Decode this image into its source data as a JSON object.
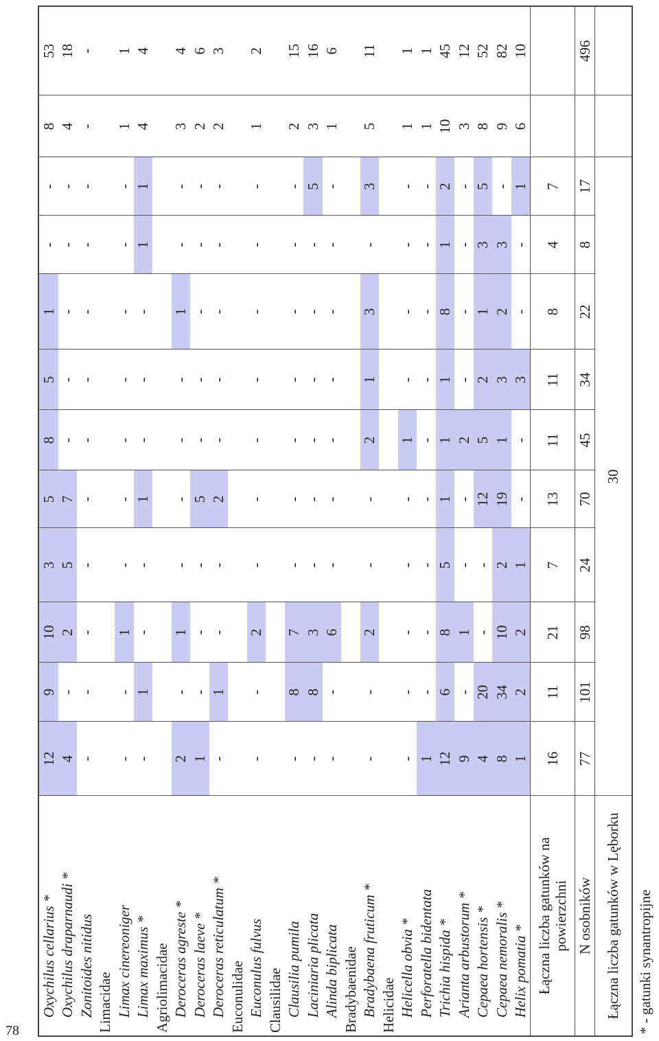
{
  "table": {
    "rows": [
      {
        "name": "Oxychilus cellarius *",
        "values": [
          12,
          9,
          10,
          3,
          5,
          8,
          5,
          1,
          "-",
          "-",
          8,
          53
        ]
      },
      {
        "name": "Oxychilus draparnaudi *",
        "values": [
          4,
          "-",
          2,
          5,
          7,
          "-",
          "-",
          "-",
          "-",
          "-",
          4,
          18
        ]
      },
      {
        "name": "Zonitoides nitidus",
        "values": [
          "-",
          "-",
          "-",
          "-",
          "-",
          "-",
          "-",
          "-",
          "-",
          "-",
          "-",
          "-"
        ]
      },
      {
        "name": "Limacidae"
      },
      {
        "name": "Limax cinereoniger",
        "values": [
          "-",
          "-",
          1,
          "-",
          "-",
          "-",
          "-",
          "-",
          "-",
          "-",
          1,
          1
        ]
      },
      {
        "name": "Limax maximus *",
        "values": [
          "-",
          1,
          "-",
          "-",
          1,
          "-",
          "-",
          "-",
          1,
          1,
          4,
          4
        ]
      },
      {
        "name": "Agriolimacidae"
      },
      {
        "name": "Deroceras agreste *",
        "values": [
          2,
          "-",
          1,
          "-",
          "-",
          "-",
          "-",
          1,
          "-",
          "-",
          3,
          4
        ]
      },
      {
        "name": "Deroceras laeve *",
        "values": [
          1,
          "-",
          "-",
          "-",
          5,
          "-",
          "-",
          "-",
          "-",
          "-",
          2,
          6
        ]
      },
      {
        "name": "Deroceras reticulatum *",
        "values": [
          "-",
          1,
          "-",
          "-",
          2,
          "-",
          "-",
          "-",
          "-",
          "-",
          2,
          3
        ]
      },
      {
        "name": "Euconulidae"
      },
      {
        "name": "Euconulus fulvus",
        "values": [
          "-",
          "-",
          2,
          "-",
          "-",
          "-",
          "-",
          "-",
          "-",
          "-",
          1,
          2
        ]
      },
      {
        "name": "Clausilidae"
      },
      {
        "name": "Clausilia pumila",
        "values": [
          "-",
          8,
          7,
          "-",
          "-",
          "-",
          "-",
          "-",
          "-",
          "-",
          2,
          15
        ]
      },
      {
        "name": "Laciniaria plicata",
        "values": [
          "-",
          8,
          3,
          "-",
          "-",
          "-",
          "-",
          "-",
          "-",
          5,
          3,
          16
        ]
      },
      {
        "name": "Alinda biplicata",
        "values": [
          "-",
          "-",
          6,
          "-",
          "-",
          "-",
          "-",
          "-",
          "-",
          "-",
          1,
          6
        ]
      },
      {
        "name": "Bradybaenidae"
      },
      {
        "name": "Bradybaena fruticum *",
        "values": [
          "-",
          "-",
          2,
          "-",
          "-",
          2,
          1,
          3,
          "-",
          3,
          5,
          11
        ]
      },
      {
        "name": "Helicidae"
      },
      {
        "name": "Helicella obvia *",
        "values": [
          "-",
          "-",
          "-",
          "-",
          "-",
          1,
          "-",
          "-",
          "-",
          "-",
          1,
          1
        ]
      },
      {
        "name": "Perforatella bidentata",
        "values": [
          1,
          "-",
          "-",
          "-",
          "-",
          "-",
          "-",
          "-",
          "-",
          "-",
          1,
          1
        ]
      },
      {
        "name": "Trichia hispida *",
        "values": [
          12,
          6,
          8,
          5,
          1,
          1,
          1,
          8,
          1,
          2,
          10,
          45
        ]
      },
      {
        "name": "Arianta arbustorum *",
        "values": [
          9,
          "-",
          1,
          "-",
          "-",
          2,
          "-",
          "-",
          "-",
          "-",
          3,
          12
        ]
      },
      {
        "name": "Cepaea hortensis *",
        "values": [
          4,
          20,
          "-",
          "-",
          12,
          5,
          2,
          1,
          3,
          5,
          8,
          52
        ]
      },
      {
        "name": "Cepaea nemoralis *",
        "values": [
          8,
          34,
          10,
          2,
          19,
          1,
          3,
          2,
          3,
          "-",
          9,
          82
        ]
      },
      {
        "name": "Helix pomatia *",
        "values": [
          1,
          2,
          2,
          1,
          "-",
          "-",
          3,
          "-",
          "-",
          1,
          6,
          10
        ]
      }
    ],
    "totals": [
      {
        "label": "Łączna liczba gatunków na powierzchni",
        "values": [
          16,
          11,
          21,
          7,
          13,
          11,
          11,
          8,
          4,
          7,
          null,
          null
        ]
      },
      {
        "label": "N osobników",
        "values": [
          77,
          101,
          98,
          24,
          70,
          45,
          34,
          22,
          8,
          17,
          null,
          496
        ]
      }
    ],
    "overall": {
      "label": "Łączna liczba gatunków w Lęborku",
      "value": 30
    }
  },
  "footnote": "* - gatunki synantropijne",
  "page_number": "78"
}
